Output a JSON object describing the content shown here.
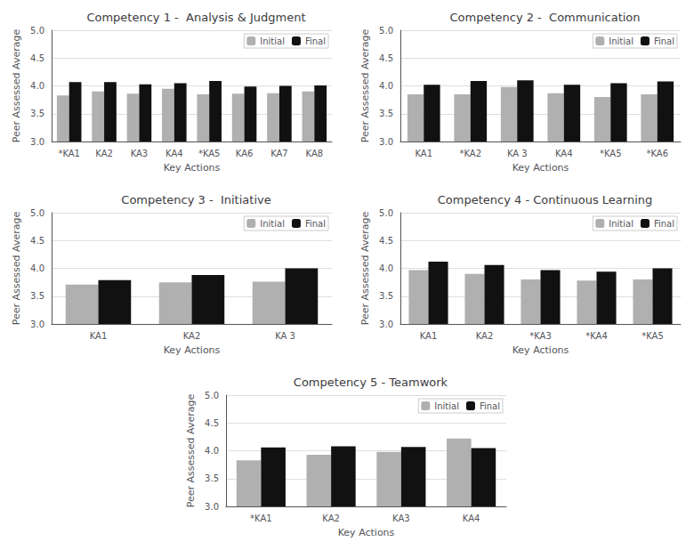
{
  "chart_data": [
    {
      "type": "bar",
      "title": "Competency 1 -  Analysis & Judgment",
      "categories": [
        "*KA1",
        "KA2",
        "KA3",
        "KA4",
        "*KA5",
        "KA6",
        "KA7",
        "KA8"
      ],
      "series": [
        {
          "name": "Initial",
          "color": "#b0b0b0",
          "values": [
            3.83,
            3.9,
            3.86,
            3.95,
            3.85,
            3.86,
            3.87,
            3.9
          ]
        },
        {
          "name": "Final",
          "color": "#111111",
          "values": [
            4.07,
            4.07,
            4.03,
            4.05,
            4.09,
            3.99,
            4.0,
            4.01
          ]
        }
      ],
      "xlabel": "Key Actions",
      "ylabel": "Peer Assessed Average",
      "ylim": [
        3.0,
        5.0
      ],
      "yticks": [
        {
          "value": 3.0,
          "label": "3.0"
        },
        3.5,
        {
          "value": 4.0,
          "label": "4.0"
        },
        4.5,
        {
          "value": 5.0,
          "label": "5.0"
        }
      ],
      "grid": true,
      "legend": "upper right"
    },
    {
      "type": "bar",
      "title": "Competency 2 -  Communication",
      "categories": [
        "KA1",
        "*KA2",
        "KA 3",
        "KA4",
        "*KA5",
        "*KA6"
      ],
      "series": [
        {
          "name": "Initial",
          "color": "#b0b0b0",
          "values": [
            3.85,
            3.85,
            3.98,
            3.87,
            3.8,
            3.85
          ]
        },
        {
          "name": "Final",
          "color": "#111111",
          "values": [
            4.02,
            4.09,
            4.1,
            4.02,
            4.05,
            4.08
          ]
        }
      ],
      "xlabel": "Key Actions",
      "ylabel": "Peer Assessed Average",
      "ylim": [
        3.0,
        5.0
      ],
      "yticks": [
        {
          "value": 3.0,
          "label": "3.0"
        },
        3.5,
        {
          "value": 4.0,
          "label": "4.0"
        },
        4.5,
        {
          "value": 5.0,
          "label": "5.0"
        }
      ],
      "grid": true,
      "legend": "upper right"
    },
    {
      "type": "bar",
      "title": "Competency 3 -  Initiative",
      "categories": [
        "KA1",
        "KA2",
        "KA 3"
      ],
      "series": [
        {
          "name": "Initial",
          "color": "#b0b0b0",
          "values": [
            3.71,
            3.75,
            3.76
          ]
        },
        {
          "name": "Final",
          "color": "#111111",
          "values": [
            3.79,
            3.88,
            4.0
          ]
        }
      ],
      "xlabel": "Key Actions",
      "ylabel": "Peer Assessed Average",
      "ylim": [
        3.0,
        5.0
      ],
      "yticks": [
        {
          "value": 3.0,
          "label": "3.0"
        },
        3.5,
        {
          "value": 4.0,
          "label": "4.0"
        },
        4.5,
        {
          "value": 5.0,
          "label": "5.0"
        }
      ],
      "grid": true,
      "legend": "upper right"
    },
    {
      "type": "bar",
      "title": "Competency 4 - Continuous Learning",
      "categories": [
        "KA1",
        "KA2",
        "*KA3",
        "*KA4",
        "*KA5"
      ],
      "series": [
        {
          "name": "Initial",
          "color": "#b0b0b0",
          "values": [
            3.97,
            3.9,
            3.8,
            3.78,
            3.8
          ]
        },
        {
          "name": "Final",
          "color": "#111111",
          "values": [
            4.12,
            4.06,
            3.97,
            3.94,
            4.0
          ]
        }
      ],
      "xlabel": "Key Actions",
      "ylabel": "Peer Assessed Average",
      "ylim": [
        3.0,
        5.0
      ],
      "yticks": [
        {
          "value": 3.0,
          "label": "3.0"
        },
        3.5,
        {
          "value": 4.0,
          "label": "4.0"
        },
        4.5,
        {
          "value": 5.0,
          "label": "5.0"
        }
      ],
      "grid": true,
      "legend": "upper right"
    },
    {
      "type": "bar",
      "title": "Competency 5 - Teamwork",
      "categories": [
        "*KA1",
        "KA2",
        "KA3",
        "KA4"
      ],
      "series": [
        {
          "name": "Initial",
          "color": "#b0b0b0",
          "values": [
            3.83,
            3.93,
            3.98,
            4.22
          ]
        },
        {
          "name": "Final",
          "color": "#111111",
          "values": [
            4.06,
            4.08,
            4.07,
            4.05
          ]
        }
      ],
      "xlabel": "Key Actions",
      "ylabel": "Peer Assessed Average",
      "ylim": [
        3.0,
        5.0
      ],
      "yticks": [
        {
          "value": 3.0,
          "label": "3.0"
        },
        3.5,
        {
          "value": 4.0,
          "label": "4.0"
        },
        4.5,
        {
          "value": 5.0,
          "label": "5.0"
        }
      ],
      "grid": true,
      "legend": "upper right"
    }
  ]
}
